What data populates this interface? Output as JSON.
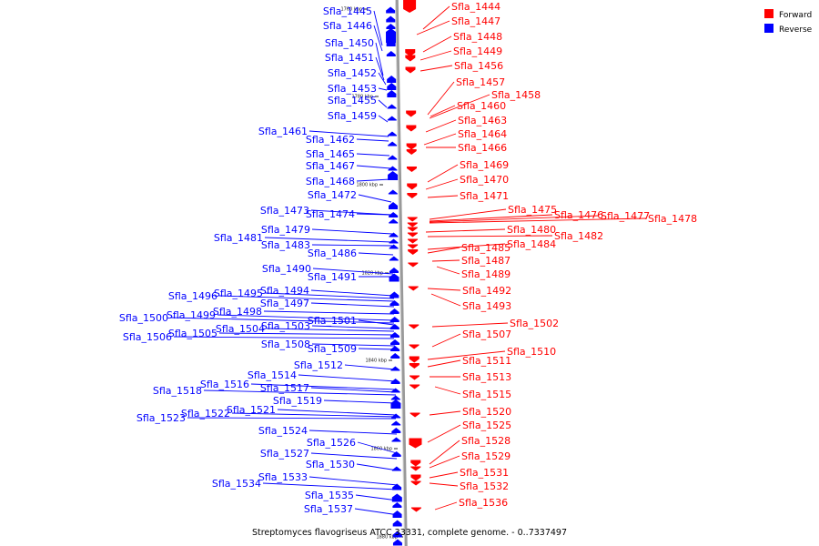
{
  "caption": "Streptomyces flavogriseus ATCC 33331, complete genome. - 0..7337497",
  "legend": [
    {
      "label": "Forward",
      "color": "#ff0000"
    },
    {
      "label": "Reverse",
      "color": "#0000ff"
    }
  ],
  "colors": {
    "forward": "#ff0000",
    "reverse": "#0000ff",
    "axis": "#999999"
  },
  "ticks": [
    "1760 kbp",
    "1780 kbp",
    "1800 kbp",
    "1820 kbp",
    "1840 kbp",
    "1860 kbp",
    "1880 kbp"
  ],
  "reverse_genes": [
    "Sfla_1445",
    "Sfla_1446",
    "Sfla_1450",
    "Sfla_1451",
    "Sfla_1452",
    "Sfla_1453",
    "Sfla_1455",
    "Sfla_1459",
    "Sfla_1461",
    "Sfla_1462",
    "Sfla_1465",
    "Sfla_1467",
    "Sfla_1468",
    "Sfla_1472",
    "Sfla_1473",
    "Sfla_1474",
    "Sfla_1479",
    "Sfla_1481",
    "Sfla_1483",
    "Sfla_1486",
    "Sfla_1490",
    "Sfla_1491",
    "Sfla_1494",
    "Sfla_1495",
    "Sfla_1496",
    "Sfla_1497",
    "Sfla_1498",
    "Sfla_1499",
    "Sfla_1500",
    "Sfla_1501",
    "Sfla_1503",
    "Sfla_1504",
    "Sfla_1505",
    "Sfla_1506",
    "Sfla_1508",
    "Sfla_1509",
    "Sfla_1512",
    "Sfla_1514",
    "Sfla_1516",
    "Sfla_1517",
    "Sfla_1518",
    "Sfla_1519",
    "Sfla_1521",
    "Sfla_1522",
    "Sfla_1523",
    "Sfla_1524",
    "Sfla_1526",
    "Sfla_1527",
    "Sfla_1530",
    "Sfla_1533",
    "Sfla_1534",
    "Sfla_1535",
    "Sfla_1537"
  ],
  "forward_genes": [
    "Sfla_1444",
    "Sfla_1447",
    "Sfla_1448",
    "Sfla_1449",
    "Sfla_1456",
    "Sfla_1457",
    "Sfla_1458",
    "Sfla_1460",
    "Sfla_1463",
    "Sfla_1464",
    "Sfla_1466",
    "Sfla_1469",
    "Sfla_1470",
    "Sfla_1471",
    "Sfla_1475",
    "Sfla_1476",
    "Sfla_1477",
    "Sfla_1478",
    "Sfla_1480",
    "Sfla_1482",
    "Sfla_1484",
    "Sfla_1485",
    "Sfla_1487",
    "Sfla_1489",
    "Sfla_1492",
    "Sfla_1493",
    "Sfla_1502",
    "Sfla_1507",
    "Sfla_1510",
    "Sfla_1511",
    "Sfla_1513",
    "Sfla_1515",
    "Sfla_1520",
    "Sfla_1525",
    "Sfla_1528",
    "Sfla_1529",
    "Sfla_1531",
    "Sfla_1532",
    "Sfla_1536"
  ]
}
